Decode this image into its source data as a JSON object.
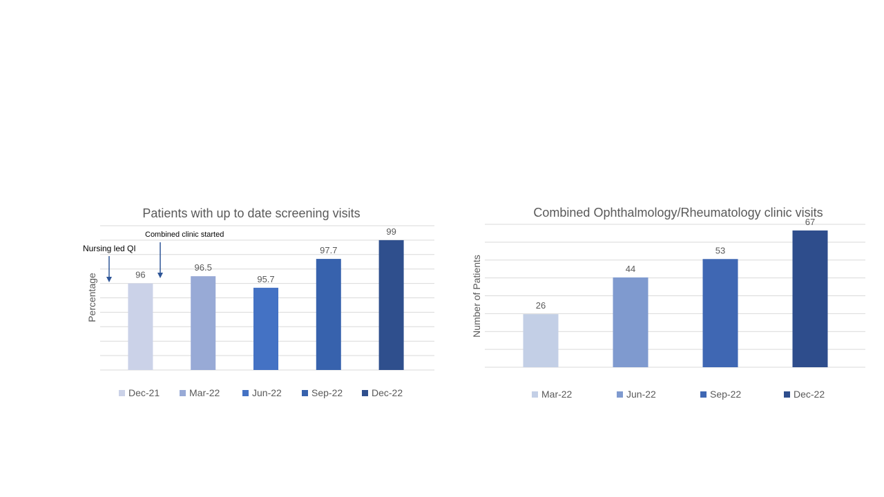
{
  "colors": {
    "grid": "#d9d9d9",
    "text": "#595959",
    "annotation_text": "#000000",
    "arrow": "#2e5597",
    "bar_palette_left": [
      "#cbd2e8",
      "#98aad6",
      "#4472c4",
      "#3762ad",
      "#2f4f8d"
    ],
    "bar_palette_right": [
      "#c3cfe6",
      "#7f9acf",
      "#3f67b3",
      "#2e4d8c"
    ]
  },
  "chart_data": [
    {
      "type": "bar",
      "title": "Patients with up to date screening visits",
      "xlabel": "",
      "ylabel": "Percentage",
      "categories": [
        "Dec-21",
        "Mar-22",
        "Jun-22",
        "Sep-22",
        "Dec-22"
      ],
      "values": [
        96,
        96.5,
        95.7,
        97.7,
        99
      ],
      "value_labels": [
        "96",
        "96.5",
        "95.7",
        "97.7",
        "99"
      ],
      "ylim": [
        90,
        100
      ],
      "grid": true,
      "legend": "bottom",
      "annotations": [
        {
          "text": "Nursing led QI",
          "arrow_between": "before-first"
        },
        {
          "text": "Combined clinic started",
          "arrow_between": "after-first"
        }
      ]
    },
    {
      "type": "bar",
      "title": "Combined Ophthalmology/Rheumatology clinic visits",
      "xlabel": "",
      "ylabel": "Number of Patients",
      "categories": [
        "Mar-22",
        "Jun-22",
        "Sep-22",
        "Dec-22"
      ],
      "values": [
        26,
        44,
        53,
        67
      ],
      "value_labels": [
        "26",
        "44",
        "53",
        "67"
      ],
      "ylim": [
        0,
        70
      ],
      "grid": true,
      "legend": "bottom"
    }
  ]
}
